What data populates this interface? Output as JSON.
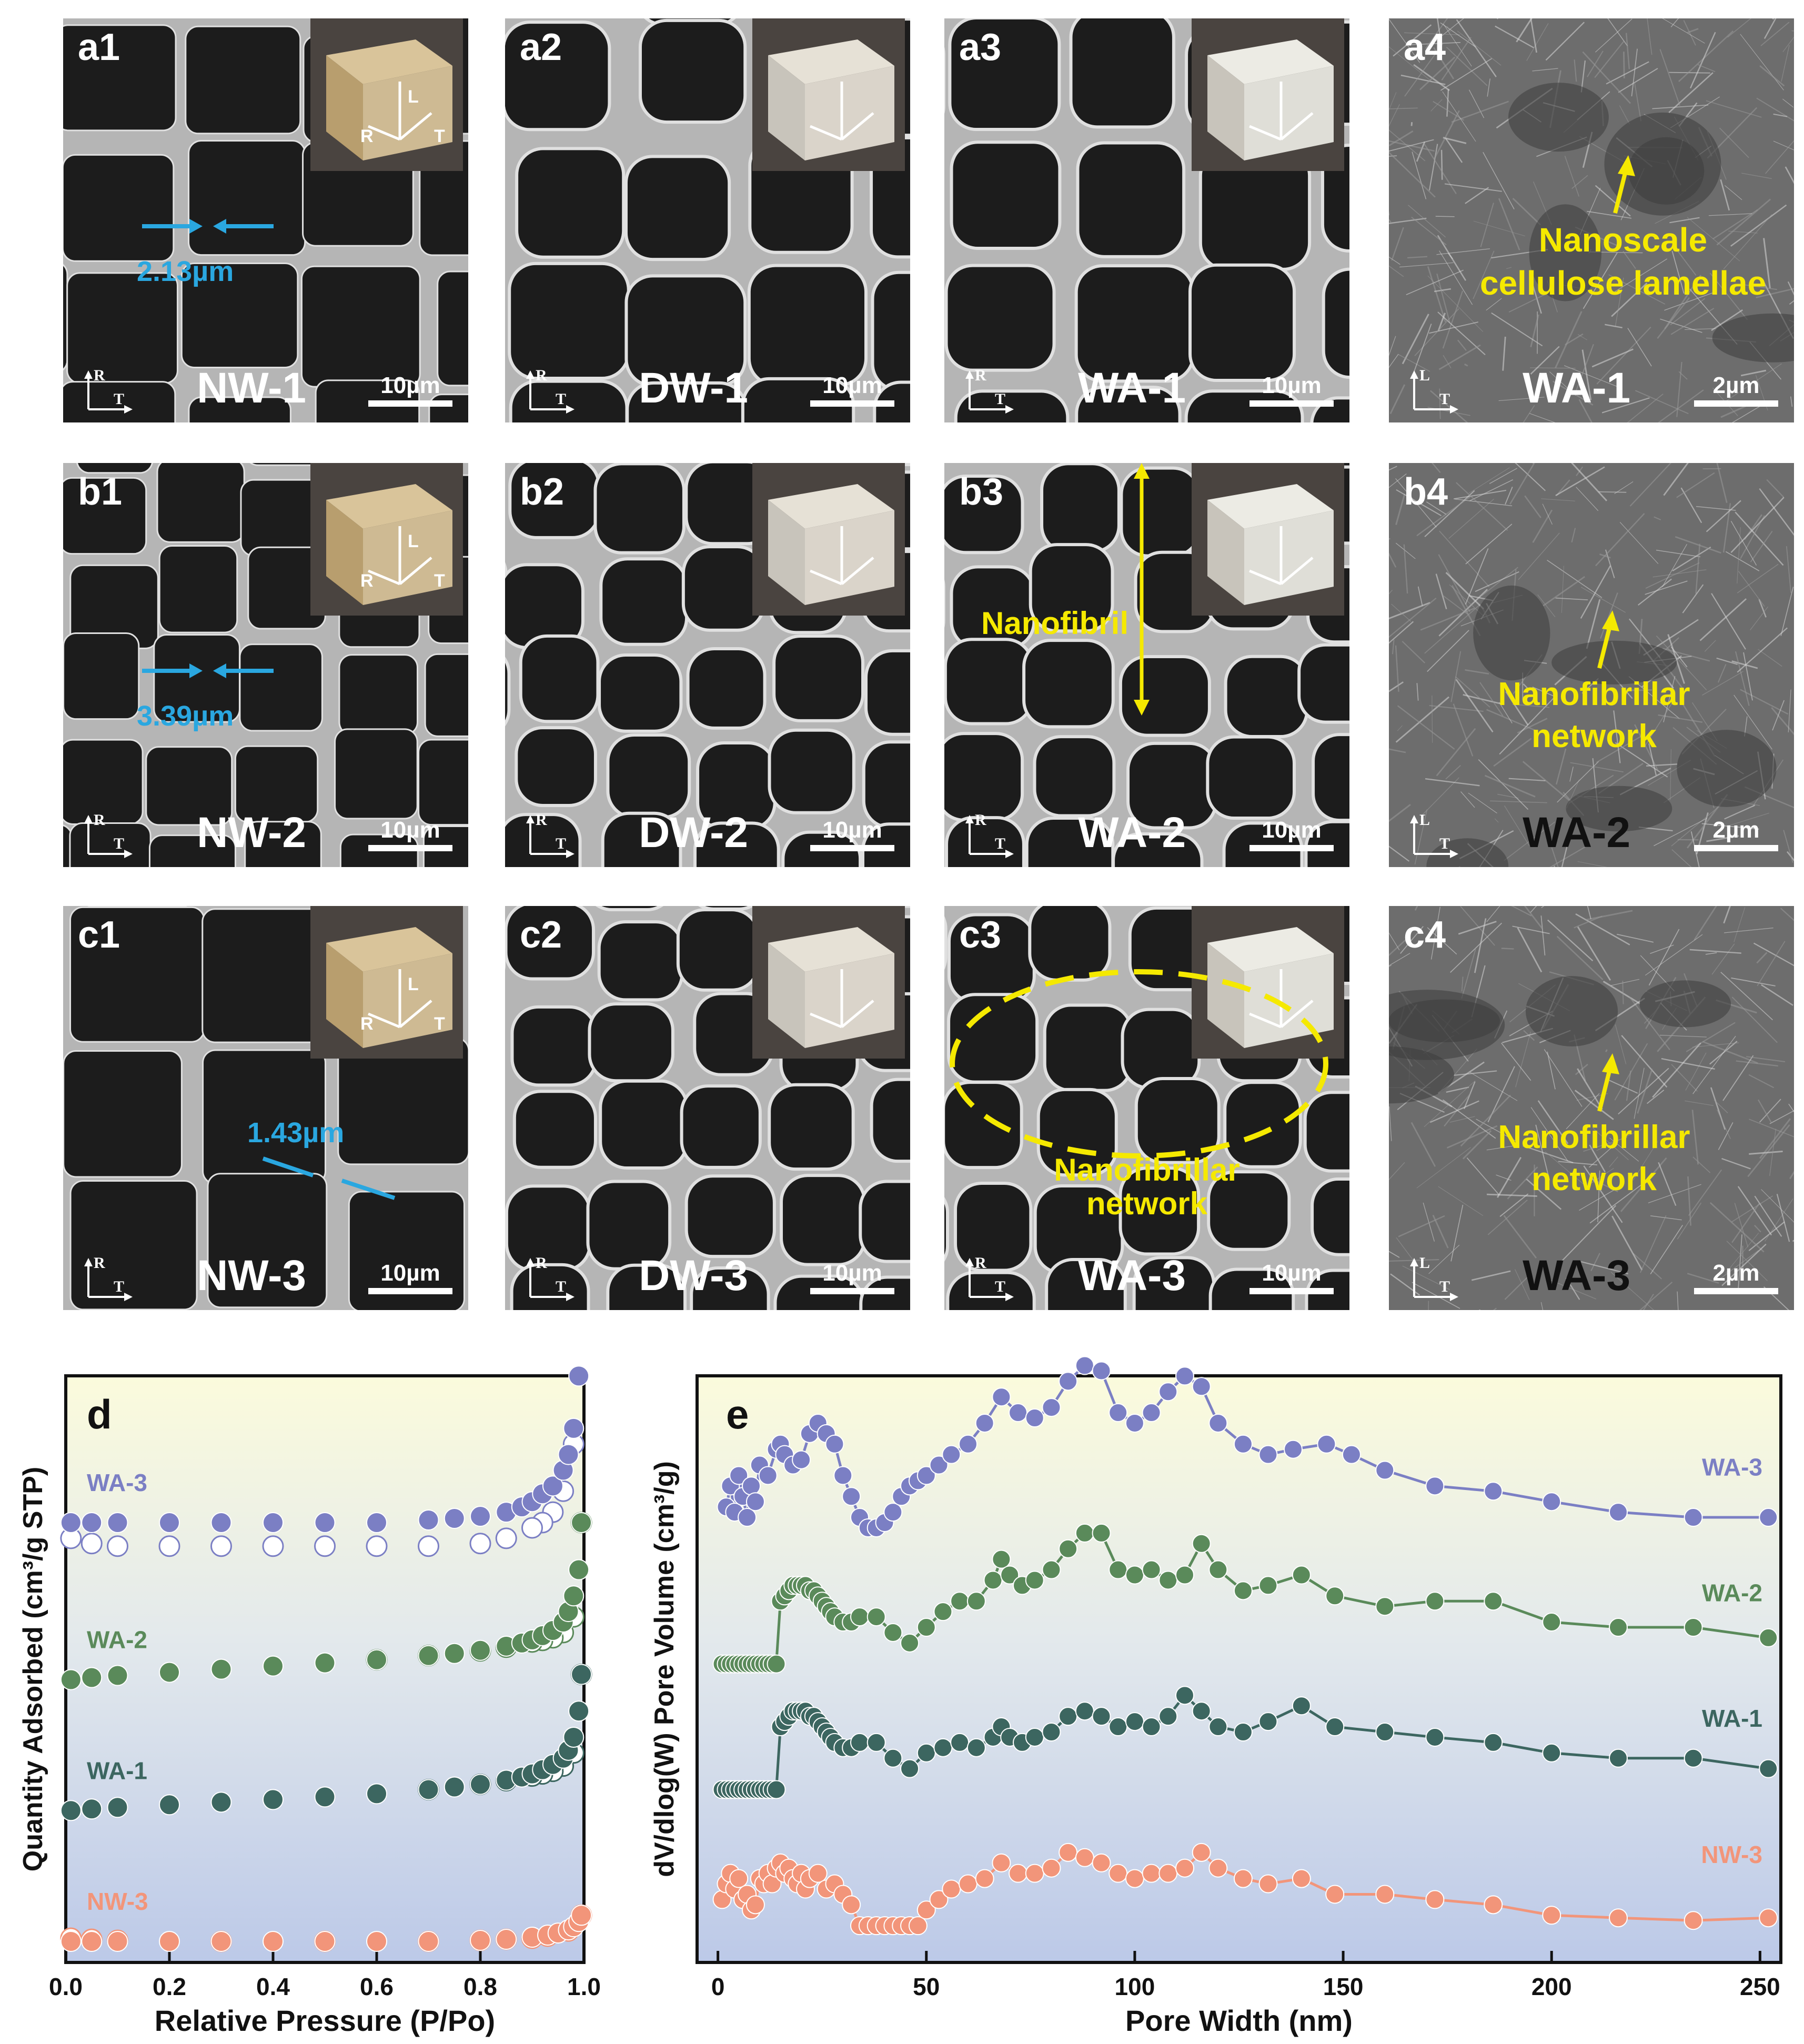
{
  "panels": [
    {
      "id": "a1",
      "sample": "NW-1",
      "scale": "10µm",
      "axes": [
        "R",
        "T"
      ],
      "inset": {
        "type": "natural",
        "labels": [
          "L",
          "R",
          "T"
        ]
      },
      "annotation": "2.13µm"
    },
    {
      "id": "a2",
      "sample": "DW-1",
      "scale": "10µm",
      "axes": [
        "R",
        "T"
      ],
      "inset": {
        "type": "delignified"
      }
    },
    {
      "id": "a3",
      "sample": "WA-1",
      "scale": "10µm",
      "axes": [
        "R",
        "T"
      ],
      "inset": {
        "type": "aerogel"
      }
    },
    {
      "id": "a4",
      "sample": "WA-1",
      "scale": "2µm",
      "axes": [
        "L",
        "T"
      ],
      "annotation": "Nanoscale cellulose lamellae"
    },
    {
      "id": "b1",
      "sample": "NW-2",
      "scale": "10µm",
      "axes": [
        "R",
        "T"
      ],
      "inset": {
        "type": "natural",
        "labels": [
          "L",
          "R",
          "T"
        ]
      },
      "annotation": "3.39µm"
    },
    {
      "id": "b2",
      "sample": "DW-2",
      "scale": "10µm",
      "axes": [
        "R",
        "T"
      ],
      "inset": {
        "type": "delignified"
      }
    },
    {
      "id": "b3",
      "sample": "WA-2",
      "scale": "10µm",
      "axes": [
        "R",
        "T"
      ],
      "inset": {
        "type": "aerogel"
      },
      "annotation": "Nanofibril"
    },
    {
      "id": "b4",
      "sample": "WA-2",
      "scale": "2µm",
      "axes": [
        "L",
        "T"
      ],
      "annotation": "Nanofibrillar network"
    },
    {
      "id": "c1",
      "sample": "NW-3",
      "scale": "10µm",
      "axes": [
        "R",
        "T"
      ],
      "inset": {
        "type": "natural",
        "labels": [
          "L",
          "R",
          "T"
        ]
      },
      "annotation": "1.43µm"
    },
    {
      "id": "c2",
      "sample": "DW-3",
      "scale": "10µm",
      "axes": [
        "R",
        "T"
      ],
      "inset": {
        "type": "delignified"
      }
    },
    {
      "id": "c3",
      "sample": "WA-3",
      "scale": "10µm",
      "axes": [
        "R",
        "T"
      ],
      "inset": {
        "type": "aerogel"
      },
      "annotation": "Nanofibrillar network"
    },
    {
      "id": "c4",
      "sample": "WA-3",
      "scale": "2µm",
      "axes": [
        "L",
        "T"
      ],
      "annotation": "Nanofibrillar network"
    }
  ],
  "chart_data": [
    {
      "type": "scatter",
      "panel_label": "d",
      "xlabel": "Relative Pressure (P/Po)",
      "ylabel": "Quantity Adsorbed (cm³/g STP)",
      "xlim": [
        0.0,
        1.0
      ],
      "xticks": [
        "0.0",
        "0.2",
        "0.4",
        "0.6",
        "0.8",
        "1.0"
      ],
      "y_ticks_shown": false,
      "background": "gradient light yellow to light blue",
      "series": [
        {
          "name": "WA-3",
          "color": "#7b7fc4",
          "offset": 0.8,
          "adsorption": {
            "x": [
              0.01,
              0.05,
              0.1,
              0.2,
              0.3,
              0.4,
              0.5,
              0.6,
              0.7,
              0.75,
              0.8,
              0.85,
              0.88,
              0.9,
              0.92,
              0.94,
              0.96,
              0.97,
              0.98,
              0.99,
              0.995
            ],
            "y": [
              0.0,
              0.0,
              0.0,
              0.0,
              0.0,
              0.0,
              0.0,
              0.0,
              0.005,
              0.008,
              0.012,
              0.02,
              0.03,
              0.04,
              0.055,
              0.07,
              0.1,
              0.13,
              0.18,
              0.28,
              0.45
            ]
          },
          "desorption": {
            "x": [
              0.995,
              0.98,
              0.96,
              0.94,
              0.92,
              0.9,
              0.85,
              0.8,
              0.7,
              0.6,
              0.5,
              0.4,
              0.3,
              0.2,
              0.1,
              0.05,
              0.01
            ],
            "y": [
              0.45,
              0.15,
              0.06,
              0.02,
              0.0,
              -0.01,
              -0.03,
              -0.04,
              -0.045,
              -0.045,
              -0.045,
              -0.045,
              -0.045,
              -0.045,
              -0.045,
              -0.04,
              -0.03
            ]
          }
        },
        {
          "name": "WA-2",
          "color": "#5a8a5a",
          "offset": 0.5,
          "adsorption": {
            "x": [
              0.01,
              0.05,
              0.1,
              0.2,
              0.3,
              0.4,
              0.5,
              0.6,
              0.7,
              0.75,
              0.8,
              0.85,
              0.88,
              0.9,
              0.92,
              0.94,
              0.96,
              0.97,
              0.98,
              0.99,
              0.995
            ],
            "y": [
              0.0,
              0.004,
              0.008,
              0.014,
              0.02,
              0.026,
              0.032,
              0.038,
              0.046,
              0.05,
              0.056,
              0.064,
              0.07,
              0.076,
              0.084,
              0.094,
              0.11,
              0.13,
              0.16,
              0.21,
              0.3
            ]
          },
          "desorption": {
            "x": [
              0.995,
              0.98,
              0.96,
              0.94,
              0.92,
              0.9,
              0.85,
              0.8,
              0.7,
              0.6
            ],
            "y": [
              0.3,
              0.12,
              0.09,
              0.08,
              0.075,
              0.072,
              0.062,
              0.055,
              0.046,
              0.038
            ]
          }
        },
        {
          "name": "WA-1",
          "color": "#3c6660",
          "offset": 0.25,
          "adsorption": {
            "x": [
              0.01,
              0.05,
              0.1,
              0.2,
              0.3,
              0.4,
              0.5,
              0.6,
              0.7,
              0.75,
              0.8,
              0.85,
              0.88,
              0.9,
              0.92,
              0.94,
              0.96,
              0.97,
              0.98,
              0.99,
              0.995
            ],
            "y": [
              0.0,
              0.003,
              0.006,
              0.011,
              0.016,
              0.021,
              0.026,
              0.032,
              0.04,
              0.045,
              0.05,
              0.058,
              0.064,
              0.07,
              0.078,
              0.088,
              0.1,
              0.115,
              0.14,
              0.19,
              0.26
            ]
          },
          "desorption": {
            "x": [
              0.995,
              0.98,
              0.96,
              0.94,
              0.92,
              0.9,
              0.85,
              0.8,
              0.7
            ],
            "y": [
              0.26,
              0.11,
              0.085,
              0.075,
              0.07,
              0.066,
              0.057,
              0.05,
              0.04
            ]
          }
        },
        {
          "name": "NW-3",
          "color": "#f2957a",
          "offset": 0.0,
          "adsorption": {
            "x": [
              0.01,
              0.05,
              0.1,
              0.2,
              0.3,
              0.4,
              0.5,
              0.6,
              0.7,
              0.8,
              0.85,
              0.9,
              0.93,
              0.95,
              0.97,
              0.98,
              0.99,
              0.995
            ],
            "y": [
              0.0,
              0.0,
              0.0,
              0.0,
              0.0,
              0.0,
              0.0,
              0.0,
              0.0,
              0.002,
              0.004,
              0.008,
              0.012,
              0.016,
              0.022,
              0.028,
              0.038,
              0.05
            ]
          },
          "desorption": {
            "x": [
              0.995,
              0.97,
              0.93,
              0.9,
              0.85,
              0.8,
              0.7,
              0.5,
              0.3,
              0.1,
              0.05,
              0.01
            ],
            "y": [
              0.05,
              0.02,
              0.01,
              0.006,
              0.004,
              0.002,
              0.0,
              0.0,
              0.0,
              0.002,
              0.004,
              0.006
            ]
          }
        }
      ]
    },
    {
      "type": "line",
      "panel_label": "e",
      "xlabel": "Pore Width (nm)",
      "ylabel": "dV/dlog(W) Pore Volume (cm³/g)",
      "xlim": [
        -5,
        255
      ],
      "xticks": [
        "0",
        "50",
        "100",
        "150",
        "200",
        "250"
      ],
      "y_ticks_shown": false,
      "background": "gradient light yellow to light blue",
      "series": [
        {
          "name": "WA-3",
          "color": "#7b7fc4",
          "offset": 0.77,
          "x": [
            2,
            3,
            4,
            5,
            6,
            7,
            8,
            9,
            10,
            12,
            14,
            15,
            16,
            18,
            20,
            22,
            24,
            26,
            28,
            30,
            32,
            34,
            36,
            38,
            40,
            42,
            44,
            46,
            48,
            50,
            53,
            56,
            60,
            64,
            68,
            72,
            76,
            80,
            84,
            88,
            92,
            96,
            100,
            104,
            108,
            112,
            116,
            120,
            126,
            132,
            138,
            146,
            152,
            160,
            172,
            186,
            200,
            216,
            234,
            252
          ],
          "y": [
            0.06,
            0.1,
            0.05,
            0.12,
            0.08,
            0.04,
            0.1,
            0.07,
            0.14,
            0.12,
            0.17,
            0.18,
            0.16,
            0.14,
            0.15,
            0.2,
            0.22,
            0.2,
            0.18,
            0.12,
            0.08,
            0.04,
            0.02,
            0.02,
            0.03,
            0.05,
            0.08,
            0.1,
            0.11,
            0.12,
            0.14,
            0.16,
            0.18,
            0.22,
            0.27,
            0.24,
            0.23,
            0.25,
            0.3,
            0.33,
            0.32,
            0.24,
            0.22,
            0.24,
            0.28,
            0.31,
            0.29,
            0.22,
            0.18,
            0.16,
            0.17,
            0.18,
            0.16,
            0.13,
            0.1,
            0.09,
            0.07,
            0.05,
            0.04,
            0.04
          ]
        },
        {
          "name": "WA-2",
          "color": "#5a8a5a",
          "offset": 0.53,
          "x": [
            1,
            2,
            3,
            4,
            5,
            6,
            7,
            8,
            9,
            10,
            11,
            12,
            13,
            14,
            15,
            16,
            17,
            18,
            19,
            20,
            21,
            22,
            23,
            24,
            25,
            26,
            27,
            28,
            30,
            32,
            34,
            38,
            42,
            46,
            50,
            54,
            58,
            62,
            66,
            68,
            70,
            73,
            76,
            80,
            84,
            88,
            92,
            96,
            100,
            104,
            108,
            112,
            116,
            120,
            126,
            132,
            140,
            148,
            160,
            172,
            186,
            200,
            216,
            234,
            252
          ],
          "y": [
            0.0,
            0.0,
            0.0,
            0.0,
            0.0,
            0.0,
            0.0,
            0.0,
            0.0,
            0.0,
            0.0,
            0.0,
            0.0,
            0.0,
            0.12,
            0.13,
            0.14,
            0.15,
            0.15,
            0.15,
            0.15,
            0.14,
            0.14,
            0.13,
            0.12,
            0.11,
            0.1,
            0.09,
            0.08,
            0.08,
            0.09,
            0.09,
            0.06,
            0.04,
            0.07,
            0.1,
            0.12,
            0.12,
            0.16,
            0.2,
            0.17,
            0.15,
            0.16,
            0.18,
            0.22,
            0.25,
            0.25,
            0.18,
            0.17,
            0.18,
            0.16,
            0.17,
            0.23,
            0.18,
            0.14,
            0.15,
            0.17,
            0.13,
            0.11,
            0.12,
            0.12,
            0.08,
            0.07,
            0.07,
            0.05
          ]
        },
        {
          "name": "WA-1",
          "color": "#3c6660",
          "offset": 0.29,
          "x": [
            1,
            2,
            3,
            4,
            5,
            6,
            7,
            8,
            9,
            10,
            11,
            12,
            13,
            14,
            15,
            16,
            17,
            18,
            19,
            20,
            21,
            22,
            23,
            24,
            25,
            26,
            27,
            28,
            30,
            32,
            34,
            38,
            42,
            46,
            50,
            54,
            58,
            62,
            66,
            68,
            70,
            73,
            76,
            80,
            84,
            88,
            92,
            96,
            100,
            104,
            108,
            112,
            116,
            120,
            126,
            132,
            140,
            148,
            160,
            172,
            186,
            200,
            216,
            234,
            252
          ],
          "y": [
            0.0,
            0.0,
            0.0,
            0.0,
            0.0,
            0.0,
            0.0,
            0.0,
            0.0,
            0.0,
            0.0,
            0.0,
            0.0,
            0.0,
            0.12,
            0.13,
            0.14,
            0.15,
            0.15,
            0.15,
            0.15,
            0.14,
            0.14,
            0.13,
            0.12,
            0.11,
            0.1,
            0.09,
            0.08,
            0.08,
            0.09,
            0.09,
            0.06,
            0.04,
            0.07,
            0.08,
            0.09,
            0.08,
            0.1,
            0.12,
            0.1,
            0.09,
            0.1,
            0.11,
            0.14,
            0.15,
            0.14,
            0.12,
            0.13,
            0.12,
            0.14,
            0.18,
            0.15,
            0.12,
            0.11,
            0.13,
            0.16,
            0.12,
            0.11,
            0.1,
            0.09,
            0.07,
            0.06,
            0.06,
            0.04
          ]
        },
        {
          "name": "NW-3",
          "color": "#f2957a",
          "offset": 0.03,
          "x": [
            1,
            2,
            3,
            4,
            5,
            6,
            7,
            8,
            9,
            10,
            11,
            12,
            13,
            14,
            15,
            16,
            17,
            18,
            19,
            20,
            21,
            22,
            24,
            26,
            28,
            30,
            32,
            34,
            36,
            38,
            40,
            42,
            44,
            46,
            48,
            50,
            53,
            56,
            60,
            64,
            68,
            72,
            76,
            80,
            84,
            88,
            92,
            96,
            100,
            104,
            108,
            112,
            116,
            120,
            126,
            132,
            140,
            148,
            160,
            172,
            186,
            200,
            216,
            234,
            252
          ],
          "y": [
            0.05,
            0.08,
            0.1,
            0.07,
            0.09,
            0.05,
            0.06,
            0.03,
            0.04,
            0.09,
            0.08,
            0.1,
            0.08,
            0.11,
            0.12,
            0.1,
            0.11,
            0.09,
            0.08,
            0.1,
            0.07,
            0.09,
            0.1,
            0.07,
            0.08,
            0.06,
            0.04,
            0.0,
            0.0,
            0.0,
            0.0,
            0.0,
            0.0,
            0.0,
            0.0,
            0.03,
            0.05,
            0.07,
            0.08,
            0.09,
            0.12,
            0.1,
            0.1,
            0.11,
            0.14,
            0.13,
            0.12,
            0.1,
            0.09,
            0.1,
            0.1,
            0.11,
            0.14,
            0.11,
            0.09,
            0.08,
            0.09,
            0.06,
            0.06,
            0.05,
            0.04,
            0.02,
            0.015,
            0.01,
            0.015
          ]
        }
      ]
    }
  ]
}
